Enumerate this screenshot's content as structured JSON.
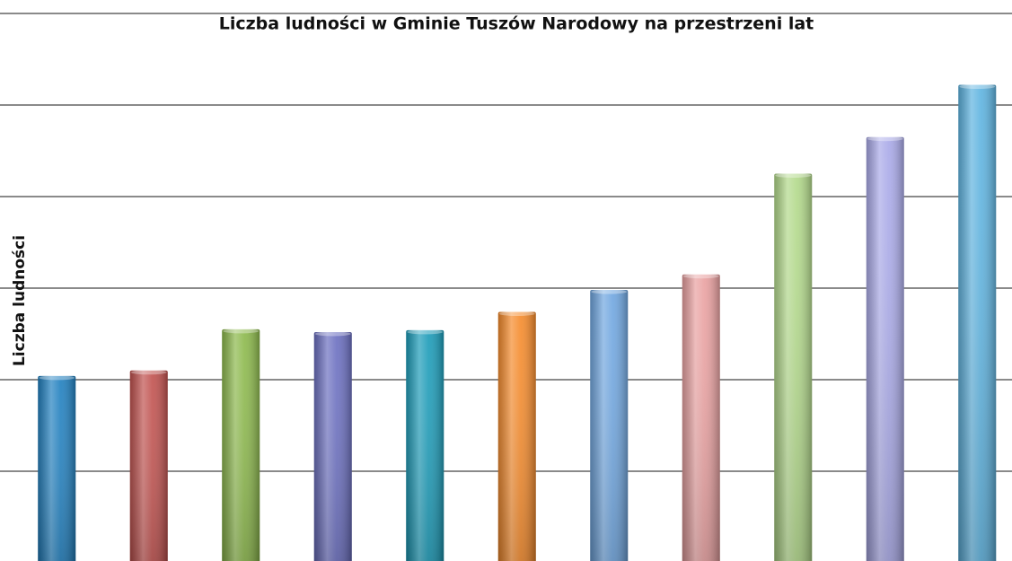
{
  "chart_data": {
    "type": "bar",
    "title": "Liczba ludności w Gminie Tuszów Narodowy na przestrzeni lat",
    "y_label": "Liczba ludności",
    "categories": [
      null,
      null,
      null,
      null,
      null,
      null,
      null,
      null,
      null,
      null,
      null
    ],
    "values": [
      2.04,
      2.1,
      2.55,
      2.52,
      2.54,
      2.74,
      2.98,
      3.15,
      4.25,
      4.65,
      5.22
    ],
    "colors": [
      "#1f7fbf",
      "#c0504d",
      "#8bb84a",
      "#6a6ec0",
      "#1a9bb8",
      "#f58a2a",
      "#6fa6e0",
      "#e9a0a0",
      "#b2d98a",
      "#a9a9e8",
      "#5db3e0"
    ],
    "ylim": [
      0,
      6
    ],
    "yticks": [
      0,
      1,
      2,
      3,
      4,
      5,
      6
    ],
    "grid": true
  }
}
